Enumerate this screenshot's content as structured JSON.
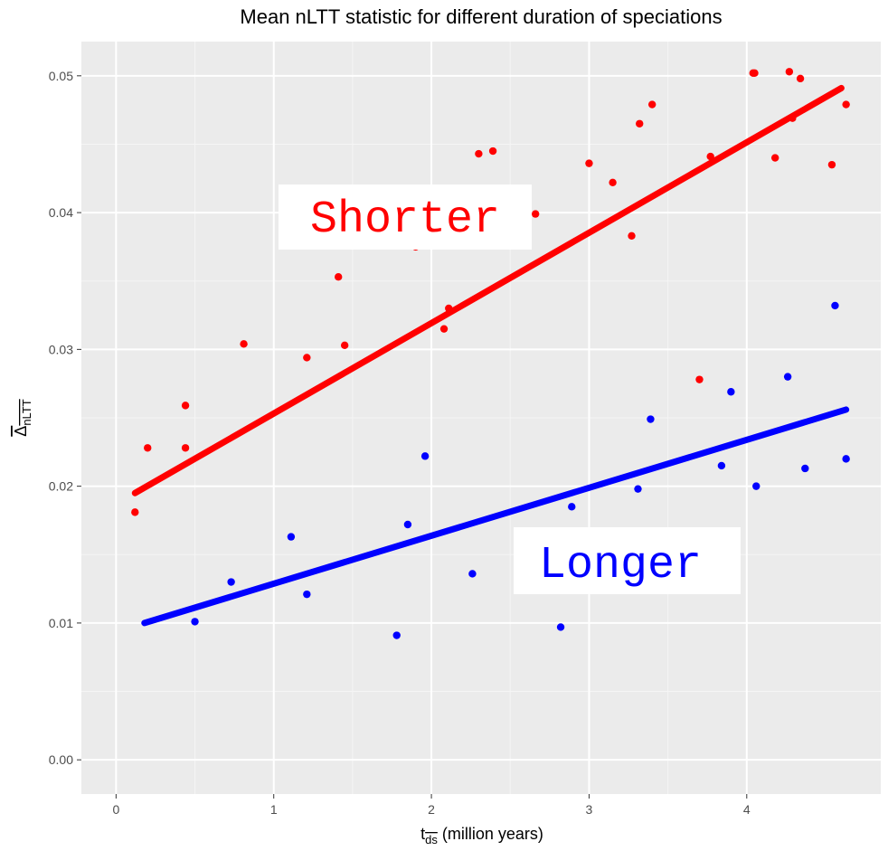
{
  "chart_data": {
    "type": "scatter",
    "title": "Mean nLTT statistic for different duration of speciations",
    "xlabel": {
      "main": "t",
      "sub": "ds",
      "rest": " (million years)"
    },
    "ylabel": {
      "main": "Δ",
      "sub": "nLTT"
    },
    "xlim": [
      -0.22,
      4.85
    ],
    "ylim": [
      -0.0025,
      0.0525
    ],
    "xticks": [
      0,
      1,
      2,
      3,
      4
    ],
    "xtick_labels": [
      "0",
      "1",
      "2",
      "3",
      "4"
    ],
    "yticks": [
      0.0,
      0.01,
      0.02,
      0.03,
      0.04,
      0.05
    ],
    "ytick_labels": [
      "0.00",
      "0.01",
      "0.02",
      "0.03",
      "0.04",
      "0.05"
    ],
    "grid": true,
    "background": "#ebebeb",
    "series": [
      {
        "color": "#ff0000",
        "points": [
          [
            0.12,
            0.0181
          ],
          [
            0.2,
            0.0228
          ],
          [
            0.44,
            0.0259
          ],
          [
            0.44,
            0.0228
          ],
          [
            0.81,
            0.0304
          ],
          [
            1.21,
            0.0294
          ],
          [
            1.41,
            0.0353
          ],
          [
            1.45,
            0.0303
          ],
          [
            1.9,
            0.0375
          ],
          [
            2.08,
            0.0315
          ],
          [
            2.11,
            0.033
          ],
          [
            2.3,
            0.0443
          ],
          [
            2.39,
            0.0445
          ],
          [
            2.66,
            0.0399
          ],
          [
            3.0,
            0.0436
          ],
          [
            3.15,
            0.0422
          ],
          [
            3.27,
            0.0383
          ],
          [
            3.32,
            0.0465
          ],
          [
            3.4,
            0.0479
          ],
          [
            3.7,
            0.0278
          ],
          [
            3.77,
            0.0441
          ],
          [
            4.04,
            0.0502
          ],
          [
            4.05,
            0.0502
          ],
          [
            4.18,
            0.044
          ],
          [
            4.27,
            0.0503
          ],
          [
            4.29,
            0.0469
          ],
          [
            4.34,
            0.0498
          ],
          [
            4.54,
            0.0435
          ],
          [
            4.63,
            0.0479
          ]
        ],
        "fit": {
          "x": [
            0.12,
            4.6
          ],
          "y": [
            0.0195,
            0.0491
          ]
        }
      },
      {
        "color": "#0000ff",
        "points": [
          [
            0.5,
            0.0101
          ],
          [
            0.73,
            0.013
          ],
          [
            1.11,
            0.0163
          ],
          [
            1.21,
            0.0121
          ],
          [
            1.78,
            0.0091
          ],
          [
            1.85,
            0.0172
          ],
          [
            1.96,
            0.0222
          ],
          [
            2.26,
            0.0136
          ],
          [
            2.82,
            0.0097
          ],
          [
            2.89,
            0.0185
          ],
          [
            3.31,
            0.0198
          ],
          [
            3.39,
            0.0249
          ],
          [
            3.84,
            0.0215
          ],
          [
            3.9,
            0.0269
          ],
          [
            4.06,
            0.02
          ],
          [
            4.26,
            0.028
          ],
          [
            4.37,
            0.0213
          ],
          [
            4.56,
            0.0332
          ],
          [
            4.63,
            0.022
          ]
        ],
        "fit": {
          "x": [
            0.18,
            4.63
          ],
          "y": [
            0.01,
            0.0256
          ]
        }
      }
    ],
    "annotations": [
      {
        "text": "Shorter",
        "color": "#ff0000"
      },
      {
        "text": "Longer",
        "color": "#0000ff"
      }
    ]
  }
}
